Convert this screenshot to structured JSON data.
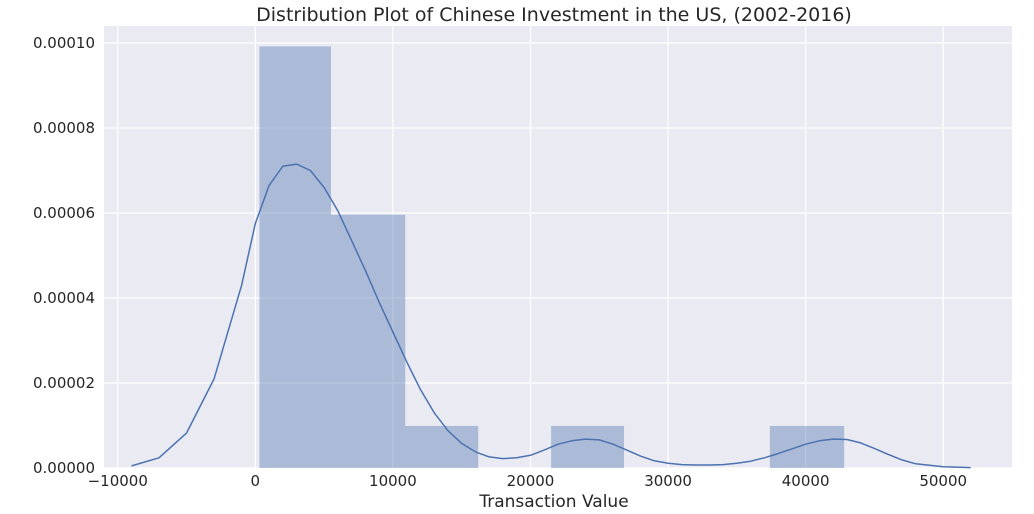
{
  "chart_data": {
    "type": "bar",
    "title": "Distribution Plot of Chinese Investment in the US, (2002-2016)",
    "xlabel": "Transaction Value",
    "ylabel": "",
    "xlim": [
      -11000,
      55000
    ],
    "ylim": [
      0,
      0.000104
    ],
    "x_ticks": [
      -10000,
      0,
      10000,
      20000,
      30000,
      40000,
      50000
    ],
    "x_tick_labels": [
      "−10000",
      "0",
      "10000",
      "20000",
      "30000",
      "40000",
      "50000"
    ],
    "y_ticks": [
      0,
      2e-05,
      4e-05,
      6e-05,
      8e-05,
      0.0001
    ],
    "y_tick_labels": [
      "0.00000",
      "0.00002",
      "0.00004",
      "0.00006",
      "0.00008",
      "0.00010"
    ],
    "grid": true,
    "legend": "none",
    "colors": {
      "background": "#eaeaf2",
      "grid": "#ffffff",
      "bars": "#4c72b0",
      "bar_opacity": 0.4,
      "kde_line": "#4c72b0",
      "text": "#262626"
    },
    "histogram": {
      "bins": [
        {
          "x0": 300,
          "x1": 5500,
          "density": 9.92e-05
        },
        {
          "x0": 5500,
          "x1": 10900,
          "density": 5.96e-05
        },
        {
          "x0": 10900,
          "x1": 16200,
          "density": 9.9e-06
        },
        {
          "x0": 16200,
          "x1": 21500,
          "density": 0
        },
        {
          "x0": 21500,
          "x1": 26800,
          "density": 9.9e-06
        },
        {
          "x0": 26800,
          "x1": 32100,
          "density": 0
        },
        {
          "x0": 32100,
          "x1": 37400,
          "density": 0
        },
        {
          "x0": 37400,
          "x1": 42800,
          "density": 9.9e-06
        }
      ]
    },
    "kde": {
      "x": [
        -9000,
        -7000,
        -5000,
        -3000,
        -1000,
        0,
        1000,
        2000,
        3000,
        4000,
        5000,
        6000,
        7000,
        8000,
        9000,
        10000,
        11000,
        12000,
        13000,
        14000,
        15000,
        16000,
        17000,
        18000,
        19000,
        20000,
        21000,
        22000,
        23000,
        24000,
        25000,
        26000,
        27000,
        28000,
        29000,
        30000,
        31000,
        32000,
        33000,
        34000,
        35000,
        36000,
        37000,
        38000,
        39000,
        40000,
        41000,
        42000,
        43000,
        44000,
        45000,
        46000,
        47000,
        48000,
        50000,
        52000
      ],
      "y": [
        5e-07,
        2.4e-06,
        8.2e-06,
        2.1e-05,
        4.3e-05,
        5.75e-05,
        6.65e-05,
        7.1e-05,
        7.15e-05,
        7e-05,
        6.6e-05,
        6.05e-05,
        5.35e-05,
        4.65e-05,
        3.9e-05,
        3.2e-05,
        2.5e-05,
        1.85e-05,
        1.3e-05,
        8.8e-06,
        5.8e-06,
        3.8e-06,
        2.6e-06,
        2.2e-06,
        2.4e-06,
        3e-06,
        4.2e-06,
        5.6e-06,
        6.4e-06,
        6.8e-06,
        6.6e-06,
        5.6e-06,
        4.2e-06,
        2.8e-06,
        1.7e-06,
        1.1e-06,
        8e-07,
        7e-07,
        7e-07,
        8e-07,
        1.1e-06,
        1.6e-06,
        2.4e-06,
        3.4e-06,
        4.5e-06,
        5.6e-06,
        6.4e-06,
        6.8e-06,
        6.7e-06,
        5.9e-06,
        4.6e-06,
        3.2e-06,
        1.9e-06,
        1e-06,
        3e-07,
        1e-07
      ]
    }
  }
}
